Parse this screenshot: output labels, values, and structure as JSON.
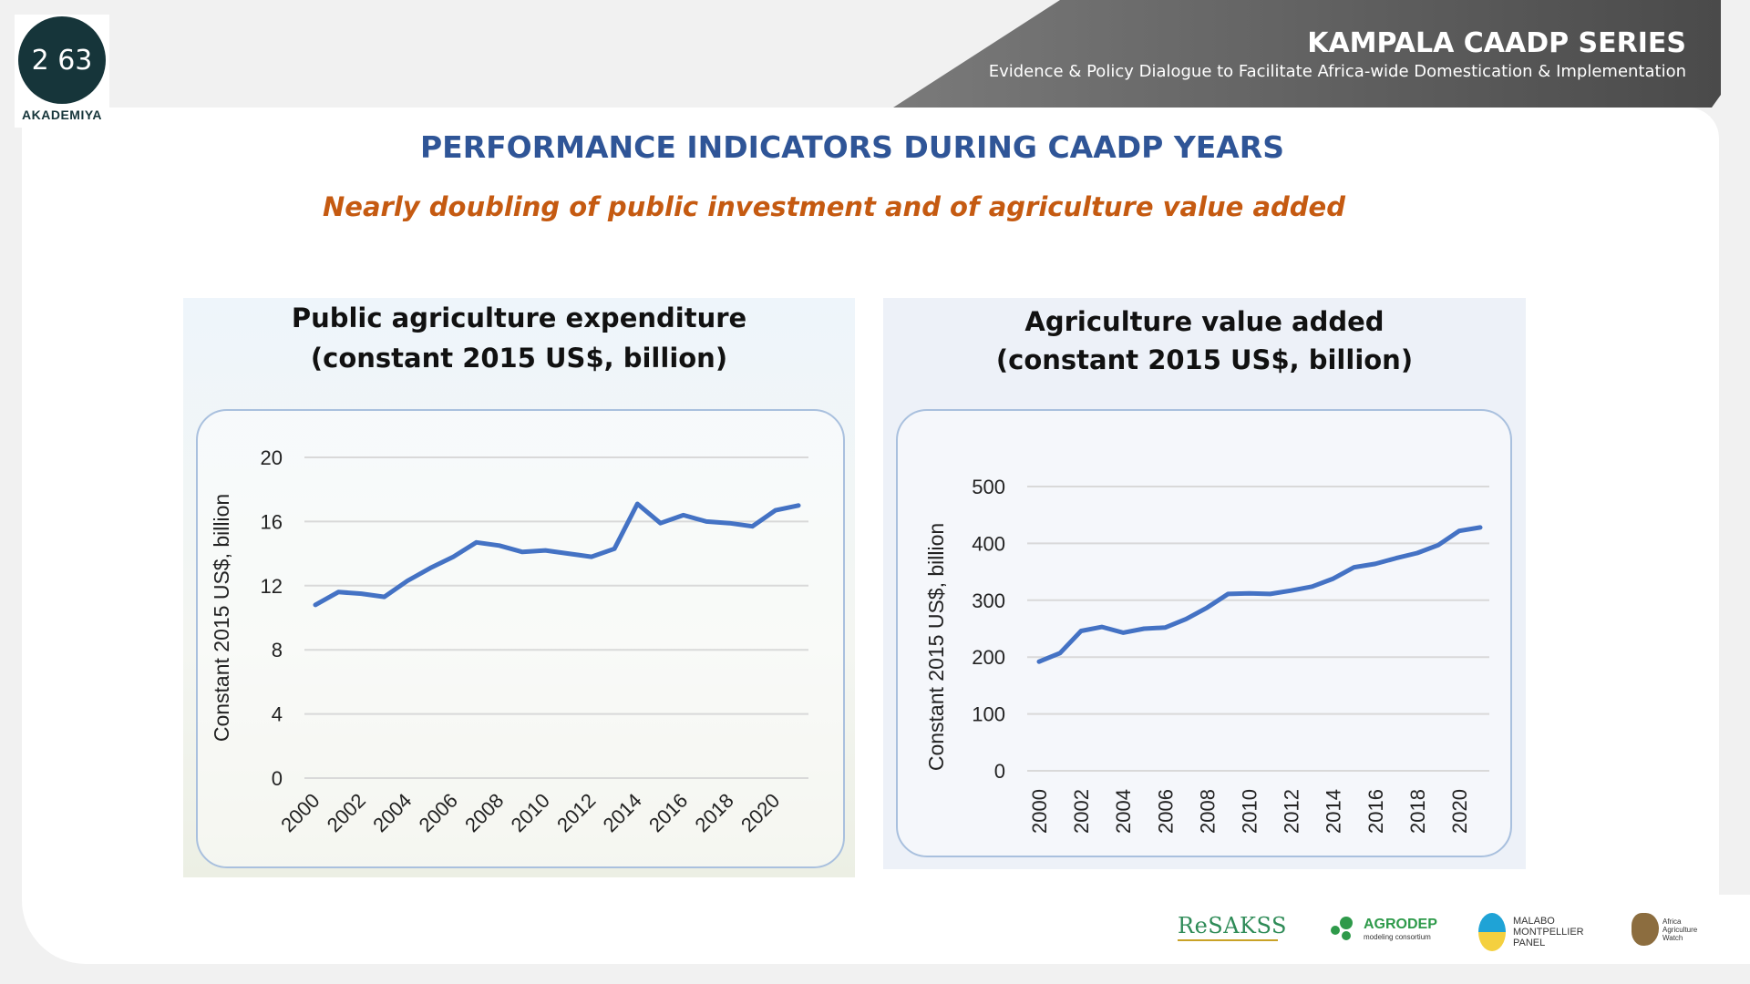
{
  "logo": {
    "number": "2 63",
    "label": "AKADEMIYA"
  },
  "banner": {
    "title": "KAMPALA CAADP SERIES",
    "subtitle": "Evidence & Policy Dialogue to Facilitate Africa-wide Domestication & Implementation"
  },
  "slide": {
    "title": "PERFORMANCE INDICATORS DURING CAADP YEARS",
    "subtitle": "Nearly doubling of public investment and of agriculture value added"
  },
  "partners": {
    "resakss": "ReSAKSS",
    "agrodep": "AGRODEP",
    "agrodep_sub": "modeling consortium",
    "malabo": "MALABO MONTPELLIER PANEL",
    "aaw": "Africa Agriculture Watch"
  },
  "colors": {
    "line": "#4472c4",
    "title_blue": "#2f5597",
    "subtitle_orange": "#c55a11"
  },
  "chart_data": [
    {
      "type": "line",
      "title": "Public agriculture expenditure",
      "subtitle": "(constant 2015 US$, billion)",
      "ylabel": "Constant 2015 US$, billion",
      "xlabel": "",
      "ylim": [
        0,
        20
      ],
      "yticks": [
        0,
        4,
        8,
        12,
        16,
        20
      ],
      "xticks": [
        "2000",
        "2002",
        "2004",
        "2006",
        "2008",
        "2010",
        "2012",
        "2014",
        "2016",
        "2018",
        "2020"
      ],
      "x": [
        2000,
        2001,
        2002,
        2003,
        2004,
        2005,
        2006,
        2007,
        2008,
        2009,
        2010,
        2011,
        2012,
        2013,
        2014,
        2015,
        2016,
        2017,
        2018,
        2019,
        2020,
        2021
      ],
      "series": [
        {
          "values": [
            10.8,
            11.6,
            11.5,
            11.3,
            12.3,
            13.1,
            13.8,
            14.7,
            14.5,
            14.1,
            14.2,
            14.0,
            13.8,
            14.3,
            17.1,
            15.9,
            16.4,
            16.0,
            15.9,
            15.7,
            16.7,
            17.0
          ]
        }
      ],
      "grid": true,
      "x_tick_rotation": "diagonal"
    },
    {
      "type": "line",
      "title": "Agriculture value added",
      "subtitle": "(constant 2015 US$, billion)",
      "ylabel": "Constant 2015 US$, billion",
      "xlabel": "",
      "ylim": [
        0,
        500
      ],
      "yticks": [
        0,
        100,
        200,
        300,
        400,
        500
      ],
      "xticks": [
        "2000",
        "2002",
        "2004",
        "2006",
        "2008",
        "2010",
        "2012",
        "2014",
        "2016",
        "2018",
        "2020"
      ],
      "x": [
        2000,
        2001,
        2002,
        2003,
        2004,
        2005,
        2006,
        2007,
        2008,
        2009,
        2010,
        2011,
        2012,
        2013,
        2014,
        2015,
        2016,
        2017,
        2018,
        2019,
        2020,
        2021
      ],
      "series": [
        {
          "values": [
            192,
            207,
            246,
            253,
            243,
            250,
            252,
            267,
            287,
            311,
            312,
            311,
            317,
            324,
            338,
            358,
            364,
            374,
            383,
            397,
            422,
            428
          ]
        }
      ],
      "grid": true,
      "x_tick_rotation": "vertical"
    }
  ]
}
